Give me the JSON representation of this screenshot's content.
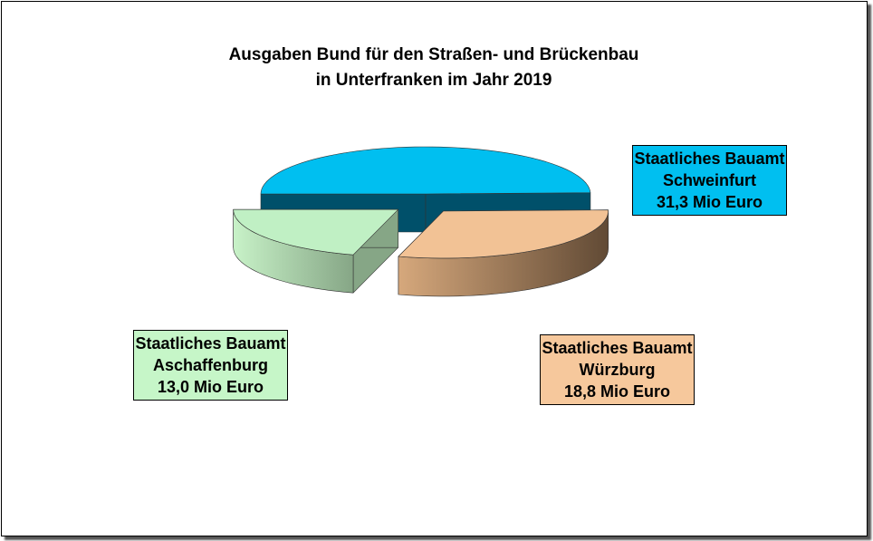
{
  "chart_data": {
    "type": "pie",
    "title": [
      "Ausgaben Bund für den Straßen- und Brückenbau",
      "in Unterfranken im Jahr 2019"
    ],
    "unit": "Mio Euro",
    "slices": [
      {
        "name": "Staatliches Bauamt Schweinfurt",
        "label_lines": [
          "Staatliches Bauamt",
          "Schweinfurt",
          "31,3 Mio Euro"
        ],
        "value": 31.3,
        "color_top": "#00bff0",
        "color_side": "#00506a",
        "color_side2": "#00506a",
        "label_bg": "#00bff0"
      },
      {
        "name": "Staatliches Bauamt Würzburg",
        "label_lines": [
          "Staatliches Bauamt",
          "Würzburg",
          "18,8 Mio Euro"
        ],
        "value": 18.8,
        "color_top": "#f2c295",
        "color_side": "#d6a87c",
        "color_side2": "#614a35",
        "label_bg": "#f6c89c"
      },
      {
        "name": "Staatliches Bauamt Aschaffenburg",
        "label_lines": [
          "Staatliches Bauamt",
          "Aschaffenburg",
          "13,0 Mio Euro"
        ],
        "value": 13.0,
        "color_top": "#c0f0c4",
        "color_side": "#c8f2c8",
        "color_side2": "#86a686",
        "label_bg": "#c6f6c8"
      }
    ]
  }
}
